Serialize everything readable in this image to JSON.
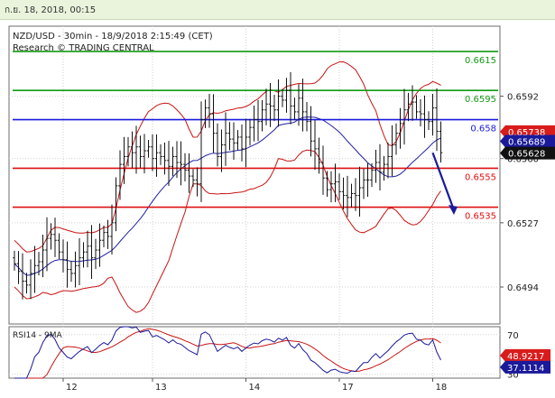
{
  "header": {
    "timestamp": "ก.ย. 18, 2018, 00:15"
  },
  "chart_data": {
    "type": "line",
    "title": "NZD/USD - 30min - 18/9/2018 2:15:49 (CET)",
    "subtitle": "Research © TRADING CENTRAL",
    "price_axis": {
      "ylim": [
        0.6475,
        0.6628
      ],
      "ticks": [
        "0.6592",
        "0.6560",
        "0.6527",
        "0.6494"
      ],
      "tick_values": [
        0.6592,
        0.656,
        0.6527,
        0.6494
      ]
    },
    "x_ticks": [
      "12",
      "13",
      "14",
      "17",
      "18"
    ],
    "x_tick_index": [
      12,
      34,
      57,
      80,
      103
    ],
    "levels": [
      {
        "label": "0.6615",
        "value": 0.6615,
        "color": "#139a13"
      },
      {
        "label": "0.6595",
        "value": 0.6595,
        "color": "#139a13"
      },
      {
        "label": "0.658",
        "value": 0.658,
        "color": "#1a1adc"
      },
      {
        "label": "0.6555",
        "value": 0.6555,
        "color": "#dd1111"
      },
      {
        "label": "0.6535",
        "value": 0.6535,
        "color": "#dd1111"
      }
    ],
    "price_badges": [
      {
        "label": "0.65738",
        "value": 0.65738,
        "color": "#d81c1c"
      },
      {
        "label": "0.65689",
        "value": 0.65689,
        "color": "#1a1a9a"
      },
      {
        "label": "0.65628",
        "value": 0.65628,
        "color": "#111111"
      }
    ],
    "close": [
      0.6506,
      0.6502,
      0.6497,
      0.6495,
      0.6501,
      0.6505,
      0.6507,
      0.6513,
      0.6519,
      0.6521,
      0.6518,
      0.6512,
      0.6508,
      0.6503,
      0.6501,
      0.6505,
      0.6509,
      0.6512,
      0.6515,
      0.6509,
      0.6513,
      0.6518,
      0.6522,
      0.652,
      0.6527,
      0.6546,
      0.6557,
      0.6561,
      0.6566,
      0.6563,
      0.6566,
      0.6561,
      0.6564,
      0.6566,
      0.656,
      0.6563,
      0.6561,
      0.6559,
      0.6556,
      0.6561,
      0.6558,
      0.6557,
      0.6554,
      0.6551,
      0.6549,
      0.6547,
      0.658,
      0.6586,
      0.6583,
      0.6573,
      0.6561,
      0.6567,
      0.6573,
      0.657,
      0.6568,
      0.6571,
      0.6565,
      0.6571,
      0.6576,
      0.658,
      0.6579,
      0.6585,
      0.6588,
      0.6587,
      0.6585,
      0.6592,
      0.659,
      0.6595,
      0.6587,
      0.6584,
      0.6591,
      0.6584,
      0.6579,
      0.6569,
      0.6565,
      0.6558,
      0.655,
      0.6544,
      0.6547,
      0.6548,
      0.6543,
      0.6541,
      0.654,
      0.6542,
      0.6541,
      0.6545,
      0.6549,
      0.6549,
      0.6554,
      0.6558,
      0.6553,
      0.6557,
      0.6561,
      0.6567,
      0.6573,
      0.6578,
      0.6585,
      0.6588,
      0.6589,
      0.6584,
      0.6583,
      0.658,
      0.6579,
      0.6586,
      0.6574,
      0.6563
    ],
    "forecast_arrow": {
      "from": [
        103,
        0.6563
      ],
      "to": [
        108,
        0.6532
      ],
      "color": "#1a1a9a"
    },
    "rsi": {
      "label": "RSI14 - 9MA",
      "ylim": [
        26,
        78
      ],
      "ticks": [
        "70",
        "30"
      ],
      "tick_values": [
        70,
        30
      ],
      "badges": [
        {
          "label": "48.9217",
          "value": 48.9217,
          "color": "#d81c1c"
        },
        {
          "label": "37.1114",
          "value": 37.1114,
          "color": "#1a1a9a"
        }
      ]
    }
  }
}
